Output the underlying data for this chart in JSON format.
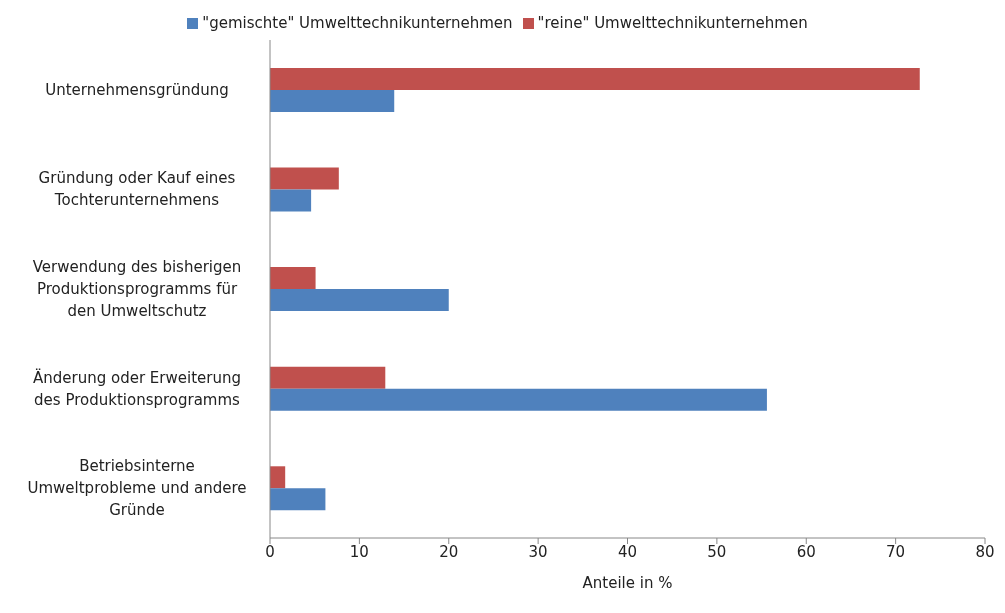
{
  "chart_data": {
    "type": "bar",
    "orientation": "horizontal",
    "xlabel": "Anteile in %",
    "categories": [
      "Unternehmensgründung",
      "Gründung oder Kauf eines Tochterunternehmens",
      "Verwendung des bisherigen Produktionsprogramms für den Umweltschutz",
      "Änderung oder Erweiterung des Produktionsprogramms",
      "Betriebsinterne Umweltprobleme und andere Gründe"
    ],
    "series": [
      {
        "name": "\"reine\" Umwelttechnikunternehmen",
        "color": "#c0504d",
        "values": [
          72.7,
          7.7,
          5.1,
          12.9,
          1.7
        ]
      },
      {
        "name": "\"gemischte\" Umwelttechnikunternehmen",
        "color": "#4f81bd",
        "values": [
          13.9,
          4.6,
          20.0,
          55.6,
          6.2
        ]
      }
    ],
    "xlim": [
      0,
      80
    ],
    "xticks": [
      0,
      10,
      20,
      30,
      40,
      50,
      60,
      70,
      80
    ],
    "grid": false,
    "legend": "top"
  }
}
